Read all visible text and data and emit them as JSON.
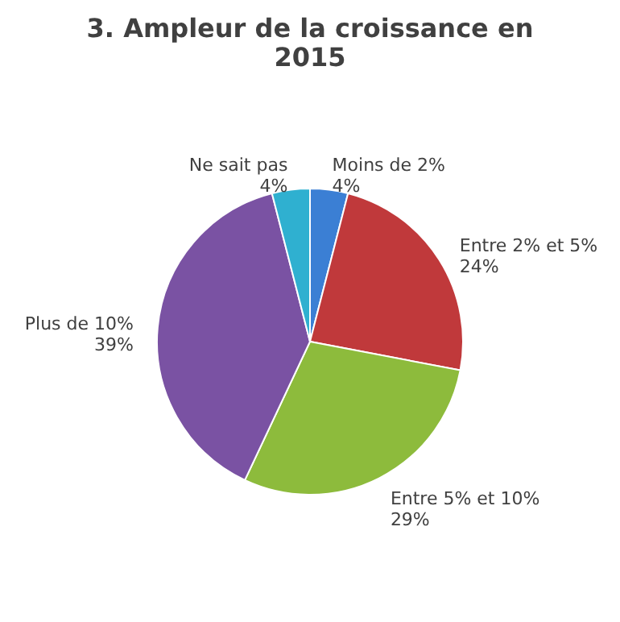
{
  "chart_data": {
    "type": "pie",
    "title": "3. Ampleur de la croissance en 2015",
    "categories": [
      "Moins de 2%",
      "Entre 2% et 5%",
      "Entre 5% et 10%",
      "Plus de 10%",
      "Ne sait pas"
    ],
    "values": [
      4,
      24,
      29,
      39,
      4
    ],
    "colors": [
      "#3b7fd4",
      "#c0393b",
      "#8dbb3c",
      "#7a52a3",
      "#2fb0d0"
    ],
    "value_labels": [
      "4%",
      "24%",
      "29%",
      "39%",
      "4%"
    ],
    "legend": false
  }
}
